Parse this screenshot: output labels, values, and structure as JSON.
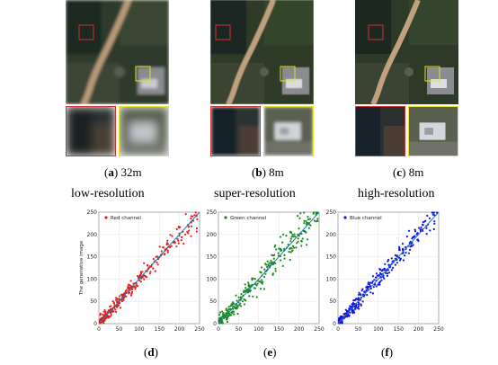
{
  "panels": [
    {
      "letter": "a",
      "resolution": "32m",
      "description": "low-resolution"
    },
    {
      "letter": "b",
      "resolution": "8m",
      "description": "super-resolution"
    },
    {
      "letter": "c",
      "resolution": "8m",
      "description": "high-resolution"
    }
  ],
  "chart_labels": [
    "d",
    "e",
    "f"
  ],
  "colors": {
    "red_channel": "#e3201b",
    "green_channel": "#1a8a1a",
    "blue_channel": "#1414e0",
    "fit_line": "#1f77b4",
    "crop_red": "#d43030",
    "crop_yellow": "#e8e020"
  },
  "chart_data": [
    {
      "type": "scatter",
      "series": [
        {
          "name": "Red channel",
          "color": "#e3201b"
        }
      ],
      "ylabel": "The generative image",
      "xlim": [
        0,
        250
      ],
      "ylim": [
        0,
        250
      ],
      "xticks": [
        0,
        50,
        100,
        150,
        200,
        250
      ],
      "yticks": [
        0,
        50,
        100,
        150,
        200,
        250
      ],
      "reference_line": {
        "x": [
          0,
          250
        ],
        "y": [
          0,
          250
        ]
      },
      "grid": true,
      "legend": "top-left",
      "spread": 10,
      "seed": 11
    },
    {
      "type": "scatter",
      "series": [
        {
          "name": "Green channel",
          "color": "#1a8a1a"
        }
      ],
      "xlim": [
        0,
        250
      ],
      "ylim": [
        0,
        250
      ],
      "xticks": [
        0,
        50,
        100,
        150,
        200,
        250
      ],
      "yticks": [
        0,
        50,
        100,
        150,
        200,
        250
      ],
      "reference_line": {
        "x": [
          0,
          250
        ],
        "y": [
          0,
          250
        ]
      },
      "grid": true,
      "legend": "top-left",
      "spread": 14,
      "seed": 23
    },
    {
      "type": "scatter",
      "series": [
        {
          "name": "Blue channel",
          "color": "#1414e0"
        }
      ],
      "xlim": [
        0,
        250
      ],
      "ylim": [
        0,
        250
      ],
      "xticks": [
        0,
        50,
        100,
        150,
        200,
        250
      ],
      "yticks": [
        0,
        50,
        100,
        150,
        200,
        250
      ],
      "reference_line": {
        "x": [
          0,
          250
        ],
        "y": [
          0,
          250
        ]
      },
      "grid": true,
      "legend": "top-left",
      "spread": 11,
      "seed": 37
    }
  ]
}
